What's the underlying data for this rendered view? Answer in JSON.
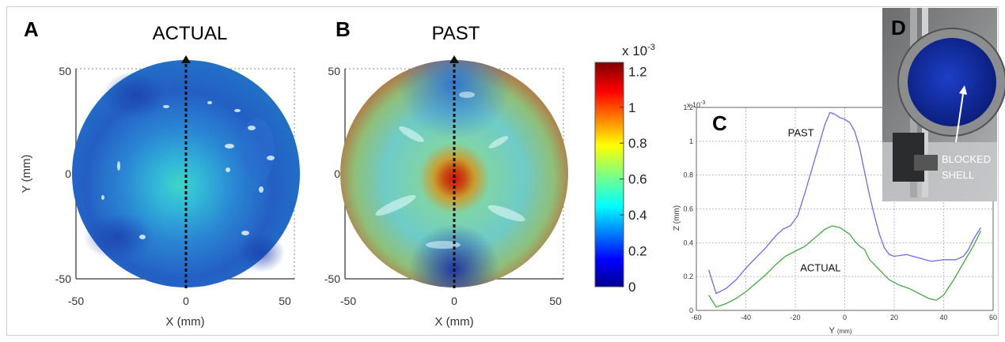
{
  "panels": {
    "A": {
      "letter": "A",
      "title": "ACTUAL"
    },
    "B": {
      "letter": "B",
      "title": "PAST"
    },
    "C": {
      "letter": "C"
    },
    "D": {
      "letter": "D",
      "annotation_line1": "BLOCKED",
      "annotation_line2": "SHELL"
    }
  },
  "colorbar": {
    "exponent_label": "x 10",
    "exponent_power": "-3",
    "ticks": [
      {
        "value": 0,
        "label": "0"
      },
      {
        "value": 0.2,
        "label": "0.2"
      },
      {
        "value": 0.4,
        "label": "0.4"
      },
      {
        "value": 0.6,
        "label": "0.6"
      },
      {
        "value": 0.8,
        "label": "0.8"
      },
      {
        "value": 1.0,
        "label": "1"
      },
      {
        "value": 1.2,
        "label": "1.2"
      }
    ],
    "range": [
      0,
      1.25
    ]
  },
  "maps": {
    "xlabel": "X (mm)",
    "ylabel": "Y (mm)",
    "xticks": [
      "-50",
      "0",
      "50"
    ],
    "yticks": [
      "50",
      "0",
      "-50"
    ]
  },
  "chart_data": {
    "type": "line",
    "xlabel": "Y",
    "xlabel_unit": "(mm)",
    "ylabel": "Z (mm)",
    "y_exponent_label": "x 10",
    "y_exponent_power": "-3",
    "xlim": [
      -60,
      60
    ],
    "ylim": [
      0,
      1.2
    ],
    "xticks": [
      "-60",
      "-40",
      "-20",
      "0",
      "20",
      "40",
      "60"
    ],
    "yticks": [
      "0",
      "0.2",
      "0.4",
      "0.6",
      "0.8",
      "1",
      "1.2"
    ],
    "grid": true,
    "series": [
      {
        "name": "PAST",
        "color": "#6b6bf0",
        "x": [
          -55,
          -52,
          -48,
          -44,
          -40,
          -36,
          -32,
          -28,
          -25,
          -22,
          -19,
          -16,
          -13,
          -10,
          -8,
          -6,
          -4,
          -2,
          0,
          2,
          4,
          6,
          8,
          10,
          12,
          14,
          16,
          18,
          20,
          25,
          30,
          35,
          40,
          45,
          48,
          50,
          52,
          55
        ],
        "y": [
          0.24,
          0.1,
          0.13,
          0.18,
          0.25,
          0.31,
          0.37,
          0.44,
          0.48,
          0.5,
          0.56,
          0.7,
          0.85,
          1.0,
          1.1,
          1.17,
          1.16,
          1.14,
          1.13,
          1.11,
          1.06,
          0.96,
          0.82,
          0.68,
          0.56,
          0.45,
          0.37,
          0.33,
          0.32,
          0.33,
          0.31,
          0.29,
          0.3,
          0.3,
          0.32,
          0.36,
          0.42,
          0.49
        ]
      },
      {
        "name": "ACTUAL",
        "color": "#43a845",
        "x": [
          -55,
          -52,
          -48,
          -44,
          -40,
          -36,
          -32,
          -28,
          -24,
          -20,
          -16,
          -12,
          -8,
          -5,
          -2,
          0,
          2,
          4,
          6,
          8,
          10,
          14,
          18,
          22,
          26,
          30,
          34,
          37,
          40,
          44,
          48,
          52,
          55
        ],
        "y": [
          0.09,
          0.02,
          0.04,
          0.07,
          0.11,
          0.16,
          0.21,
          0.27,
          0.32,
          0.35,
          0.38,
          0.43,
          0.48,
          0.5,
          0.49,
          0.47,
          0.45,
          0.41,
          0.38,
          0.36,
          0.3,
          0.24,
          0.18,
          0.15,
          0.13,
          0.1,
          0.07,
          0.06,
          0.09,
          0.18,
          0.28,
          0.38,
          0.47
        ]
      }
    ]
  }
}
